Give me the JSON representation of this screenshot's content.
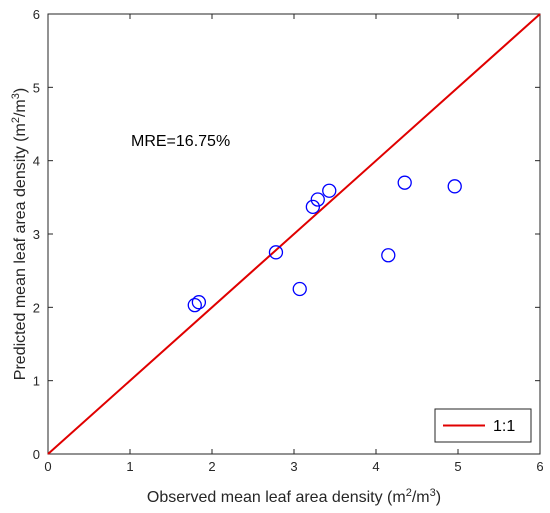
{
  "chart_data": {
    "type": "scatter",
    "xlabel": "Observed mean leaf area density (m",
    "xlabel_unit_sup1": "2",
    "xlabel_unit_mid": "/m",
    "xlabel_unit_sup2": "3",
    "xlabel_unit_end": ")",
    "ylabel": "Predicted mean leaf area density (m",
    "ylabel_unit_sup1": "2",
    "ylabel_unit_mid": "/m",
    "ylabel_unit_sup2": "3",
    "ylabel_unit_end": ")",
    "xlim": [
      0,
      6
    ],
    "ylim": [
      0,
      6
    ],
    "xticks": [
      "0",
      "1",
      "2",
      "3",
      "4",
      "5",
      "6"
    ],
    "yticks": [
      "0",
      "1",
      "2",
      "3",
      "4",
      "5",
      "6"
    ],
    "grid": false,
    "annotation": "MRE=16.75%",
    "points": {
      "marker": "open-circle",
      "color": "#0000ff",
      "x": [
        1.79,
        1.84,
        2.78,
        3.07,
        3.23,
        3.29,
        3.43,
        4.15,
        4.35,
        4.96
      ],
      "y": [
        2.03,
        2.07,
        2.75,
        2.25,
        3.37,
        3.47,
        3.59,
        2.71,
        3.7,
        3.65
      ]
    },
    "reference_line": {
      "name": "1:1",
      "color": "#e00000",
      "x": [
        0,
        6
      ],
      "y": [
        0,
        6
      ]
    },
    "legend": {
      "position": "bottom-right",
      "entries": [
        "1:1"
      ]
    }
  }
}
